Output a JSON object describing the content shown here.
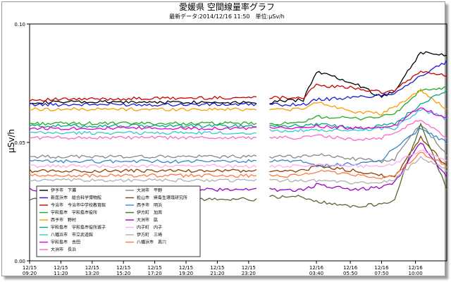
{
  "chart_data": {
    "type": "line",
    "title": "愛媛県 空間線量率グラフ",
    "subtitle": "最新データ:2014/12/16 11:50　単位:μSv/h",
    "ylabel": "μSv/h",
    "ylim": [
      0,
      0.1
    ],
    "yticks": [
      "0.00",
      "0.05",
      "0.10"
    ],
    "grid": false,
    "legend_position": "bottom-left",
    "xticks": [
      {
        "date": "12/15",
        "time": "09:20",
        "x": 0
      },
      {
        "date": "12/15",
        "time": "11:20",
        "x": 12
      },
      {
        "date": "12/15",
        "time": "13:20",
        "x": 24
      },
      {
        "date": "12/15",
        "time": "15:20",
        "x": 36
      },
      {
        "date": "12/15",
        "time": "17:20",
        "x": 48
      },
      {
        "date": "12/15",
        "time": "19:20",
        "x": 60
      },
      {
        "date": "12/15",
        "time": "21:20",
        "x": 72
      },
      {
        "date": "12/15",
        "time": "23:20",
        "x": 84
      },
      {
        "date": "12/16",
        "time": "03:40",
        "x": 110
      },
      {
        "date": "12/16",
        "time": "05:50",
        "x": 123
      },
      {
        "date": "12/16",
        "time": "07:50",
        "x": 135
      },
      {
        "date": "12/16",
        "time": "10:00",
        "x": 148
      }
    ],
    "x_end": 160,
    "gap": [
      87,
      92
    ],
    "series": [
      {
        "name": "伊予市　下灘",
        "color": "#000000",
        "values": [
          0.067,
          0.067,
          0.067,
          0.068,
          0.08,
          0.075,
          0.069,
          0.072,
          0.088,
          0.087
        ]
      },
      {
        "name": "新居浜市　総合科学博物館",
        "color": "#1a1adb",
        "values": [
          0.066,
          0.066,
          0.066,
          0.066,
          0.068,
          0.069,
          0.07,
          0.071,
          0.078,
          0.084
        ]
      },
      {
        "name": "今治市　今治市中学校教育館",
        "color": "#cc0000",
        "values": [
          0.068,
          0.069,
          0.069,
          0.069,
          0.074,
          0.073,
          0.071,
          0.072,
          0.08,
          0.078
        ]
      },
      {
        "name": "宇和島市　宇和島市役所",
        "color": "#22aa22",
        "values": [
          0.058,
          0.058,
          0.058,
          0.058,
          0.061,
          0.06,
          0.061,
          0.062,
          0.072,
          0.073
        ]
      },
      {
        "name": "西予市　野村",
        "color": "#ff9900",
        "values": [
          0.064,
          0.064,
          0.064,
          0.064,
          0.067,
          0.063,
          0.062,
          0.065,
          0.072,
          0.064
        ]
      },
      {
        "name": "宇和島市　宇和島市役所遊子",
        "color": "#00aa88",
        "values": [
          0.057,
          0.057,
          0.057,
          0.057,
          0.058,
          0.056,
          0.057,
          0.058,
          0.066,
          0.072
        ]
      },
      {
        "name": "八幡浜市　市立武道館",
        "color": "#33cccc",
        "values": [
          0.054,
          0.054,
          0.055,
          0.055,
          0.055,
          0.055,
          0.056,
          0.056,
          0.064,
          0.06
        ]
      },
      {
        "name": "宇和島市　吉田",
        "color": "#dd00dd",
        "values": [
          0.056,
          0.056,
          0.056,
          0.056,
          0.057,
          0.056,
          0.056,
          0.057,
          0.065,
          0.06
        ]
      },
      {
        "name": "大洲市　長浜",
        "color": "#ff66cc",
        "values": [
          0.052,
          0.052,
          0.052,
          0.052,
          0.053,
          0.051,
          0.052,
          0.054,
          0.06,
          0.052
        ]
      },
      {
        "name": "大洲市　平野",
        "color": "#888888",
        "values": [
          0.044,
          0.044,
          0.044,
          0.044,
          0.045,
          0.043,
          0.042,
          0.043,
          0.058,
          0.045
        ]
      },
      {
        "name": "松山市　県衛生環境研究所",
        "color": "#884400",
        "values": [
          0.038,
          0.038,
          0.038,
          0.038,
          0.04,
          0.038,
          0.036,
          0.035,
          0.052,
          0.04
        ]
      },
      {
        "name": "西予市　明浜",
        "color": "#3388cc",
        "values": [
          0.042,
          0.042,
          0.042,
          0.042,
          0.04,
          0.041,
          0.042,
          0.048,
          0.056,
          0.05
        ]
      },
      {
        "name": "伊方町　加周",
        "color": "#556b2f",
        "values": [
          0.026,
          0.026,
          0.027,
          0.027,
          0.025,
          0.023,
          0.024,
          0.026,
          0.058,
          0.03
        ]
      },
      {
        "name": "大洲市　肱",
        "color": "#9900cc",
        "values": [
          0.03,
          0.03,
          0.03,
          0.03,
          0.032,
          0.03,
          0.031,
          0.033,
          0.05,
          0.035
        ]
      },
      {
        "name": "内子町　内子",
        "color": "#ffaaee",
        "values": [
          0.04,
          0.04,
          0.04,
          0.04,
          0.041,
          0.04,
          0.04,
          0.041,
          0.047,
          0.042
        ]
      },
      {
        "name": "伊方町　三崎",
        "color": "#b0b0b0",
        "values": [
          0.034,
          0.034,
          0.034,
          0.034,
          0.034,
          0.033,
          0.033,
          0.034,
          0.044,
          0.038
        ]
      },
      {
        "name": "八幡浜市　真穴",
        "color": "#ff7744",
        "values": [
          0.036,
          0.036,
          0.036,
          0.036,
          0.038,
          0.036,
          0.035,
          0.036,
          0.046,
          0.04
        ]
      }
    ]
  }
}
